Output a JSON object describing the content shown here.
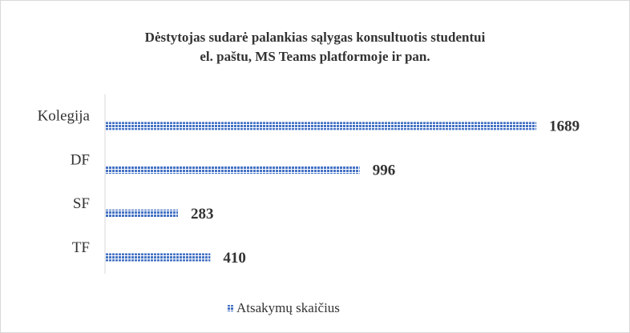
{
  "chart_data": {
    "type": "bar",
    "orientation": "horizontal",
    "title": [
      "Dėstytojas sudarė palankias sąlygas konsultuotis studentui",
      "el. paštu, MS Teams platformoje ir pan."
    ],
    "categories": [
      "Kolegija",
      "DF",
      "SF",
      "TF"
    ],
    "series": [
      {
        "name": "Atsakymų skaičius",
        "color": "#4472c4",
        "values": [
          1689,
          996,
          283,
          410
        ]
      }
    ],
    "legend": "bottom"
  }
}
